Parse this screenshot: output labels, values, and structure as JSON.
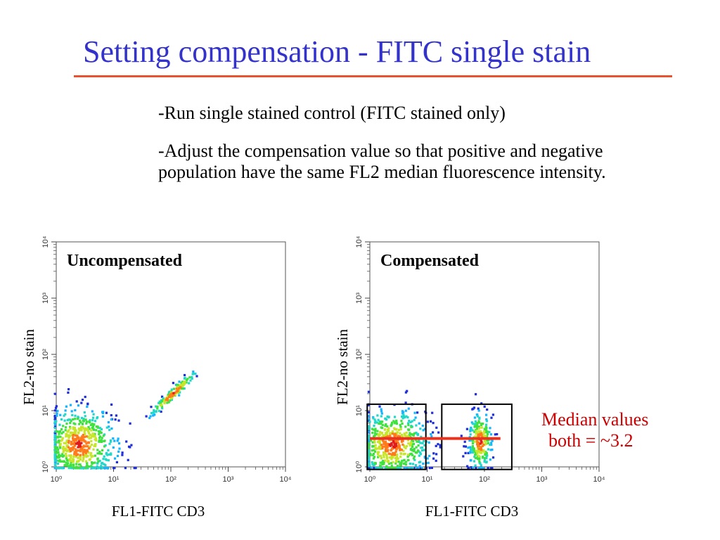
{
  "slide": {
    "title": "Setting compensation - FITC single stain",
    "bullets": [
      "-Run single stained control (FITC stained only)",
      "-Adjust the compensation value so that positive and negative population have the same FL2 median fluorescence intensity."
    ],
    "annotation": {
      "line1": "Median values",
      "line2": "both = ~3.2"
    },
    "colors": {
      "title": "#3333cc",
      "title_rule": "#e8522e",
      "annotation": "#cc0000",
      "median_line": "#e8331e",
      "density_scale": [
        "#1f2fd6",
        "#14b4ff",
        "#21d8c8",
        "#3fe13f",
        "#c7e62b",
        "#ff7a1a",
        "#e01b1b"
      ]
    }
  },
  "chart_data": [
    {
      "type": "scatter",
      "title": "Uncompensated",
      "xlabel": "FL1-FITC CD3",
      "ylabel": "FL2-no stain",
      "xscale": "log",
      "yscale": "log",
      "xlim": [
        1,
        10000
      ],
      "ylim": [
        1,
        10000
      ],
      "x_ticks": [
        "10⁰",
        "10¹",
        "10²",
        "10³",
        "10⁴"
      ],
      "y_ticks": [
        "10⁰",
        "10¹",
        "10²",
        "10³",
        "10⁴"
      ],
      "populations": [
        {
          "name": "negative",
          "center": [
            2.5,
            2.5
          ],
          "spread_decades": [
            0.33,
            0.33
          ],
          "count": 650
        },
        {
          "name": "positive",
          "center": [
            110,
            20
          ],
          "correlated_diagonal": true,
          "spread_decades": [
            0.22,
            0.06
          ],
          "count": 130
        }
      ],
      "grid": false,
      "legend": "none"
    },
    {
      "type": "scatter",
      "title": "Compensated",
      "xlabel": "FL1-FITC CD3",
      "ylabel": "FL2-no stain",
      "xscale": "log",
      "yscale": "log",
      "xlim": [
        1,
        10000
      ],
      "ylim": [
        1,
        10000
      ],
      "x_ticks": [
        "10⁰",
        "10¹",
        "10²",
        "10³",
        "10⁴"
      ],
      "y_ticks": [
        "10⁰",
        "10¹",
        "10²",
        "10³",
        "10⁴"
      ],
      "populations": [
        {
          "name": "negative",
          "center": [
            2.5,
            2.5
          ],
          "spread_decades": [
            0.33,
            0.32
          ],
          "count": 600
        },
        {
          "name": "positive",
          "center": [
            85,
            2.8
          ],
          "spread_decades": [
            0.1,
            0.27
          ],
          "count": 260
        }
      ],
      "gates": [
        {
          "x": [
            0.9,
            9.5
          ],
          "y": [
            0.9,
            13
          ]
        },
        {
          "x": [
            18,
            300
          ],
          "y": [
            0.9,
            13
          ]
        }
      ],
      "median_line": {
        "y": 3.2,
        "x": [
          1,
          190
        ]
      },
      "grid": false,
      "legend": "none"
    }
  ]
}
